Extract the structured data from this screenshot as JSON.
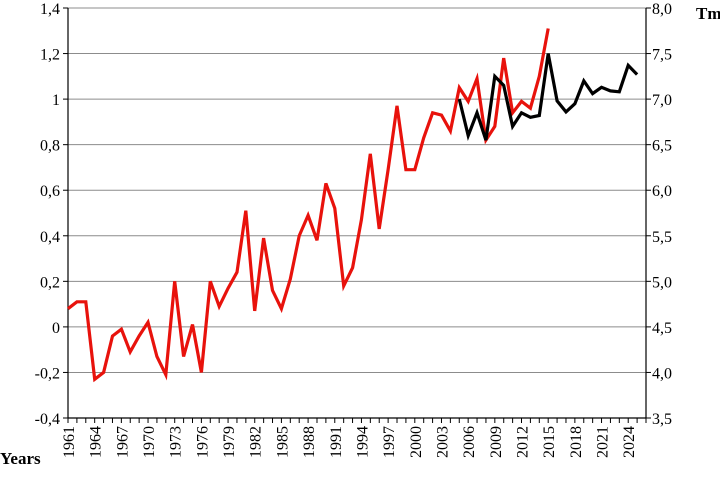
{
  "chart_data": {
    "type": "line",
    "x_label": "Years",
    "right_axis_label": "Tm",
    "left_axis": {
      "min": -0.4,
      "max": 1.4,
      "step": 0.2,
      "tick_labels": [
        "-0,4",
        "-0,2",
        "0",
        "0,2",
        "0,4",
        "0,6",
        "0,8",
        "1",
        "1,2",
        "1,4"
      ]
    },
    "right_axis": {
      "min": 3.5,
      "max": 8.0,
      "step": 0.5,
      "tick_labels": [
        "3,5",
        "4,0",
        "4,5",
        "5,0",
        "5,5",
        "6,0",
        "6,5",
        "7,0",
        "7,5",
        "8,0"
      ]
    },
    "x_axis": {
      "min": 1961,
      "max": 2026,
      "tick_labels": [
        "1961",
        "1964",
        "1967",
        "1970",
        "1973",
        "1976",
        "1979",
        "1982",
        "1985",
        "1988",
        "1991",
        "1994",
        "1997",
        "2000",
        "2003",
        "2006",
        "2009",
        "2012",
        "2015",
        "2018",
        "2021",
        "2024"
      ]
    },
    "grid": true,
    "series": [
      {
        "axis": "left",
        "color": "#e8120c",
        "x": [
          1961,
          1962,
          1963,
          1964,
          1965,
          1966,
          1967,
          1968,
          1969,
          1970,
          1971,
          1972,
          1973,
          1974,
          1975,
          1976,
          1977,
          1978,
          1979,
          1980,
          1981,
          1982,
          1983,
          1984,
          1985,
          1986,
          1987,
          1988,
          1989,
          1990,
          1991,
          1992,
          1993,
          1994,
          1995,
          1996,
          1997,
          1998,
          1999,
          2000,
          2001,
          2002,
          2003,
          2004,
          2005,
          2006,
          2007,
          2008,
          2009,
          2010,
          2011,
          2012,
          2013,
          2014,
          2015
        ],
        "y": [
          0.08,
          0.11,
          0.11,
          -0.23,
          -0.2,
          -0.04,
          -0.01,
          -0.11,
          -0.04,
          0.02,
          -0.13,
          -0.21,
          0.2,
          -0.13,
          0.01,
          -0.2,
          0.2,
          0.09,
          0.17,
          0.24,
          0.51,
          0.07,
          0.39,
          0.16,
          0.08,
          0.21,
          0.4,
          0.49,
          0.38,
          0.63,
          0.52,
          0.18,
          0.26,
          0.47,
          0.76,
          0.43,
          0.69,
          0.97,
          0.69,
          0.69,
          0.83,
          0.94,
          0.93,
          0.86,
          1.05,
          0.99,
          1.09,
          0.82,
          0.88,
          1.18,
          0.94,
          0.99,
          0.96,
          1.1,
          1.31
        ]
      },
      {
        "axis": "right",
        "color": "#000000",
        "x": [
          2005,
          2006,
          2007,
          2008,
          2009,
          2010,
          2011,
          2012,
          2013,
          2014,
          2015,
          2016,
          2017,
          2018,
          2019,
          2020,
          2021,
          2022,
          2023,
          2024,
          2025
        ],
        "y": [
          7.0,
          6.6,
          6.85,
          6.55,
          7.25,
          7.15,
          6.7,
          6.85,
          6.8,
          6.82,
          7.5,
          6.98,
          6.86,
          6.95,
          7.2,
          7.06,
          7.13,
          7.09,
          7.08,
          7.37,
          7.27
        ]
      }
    ]
  }
}
